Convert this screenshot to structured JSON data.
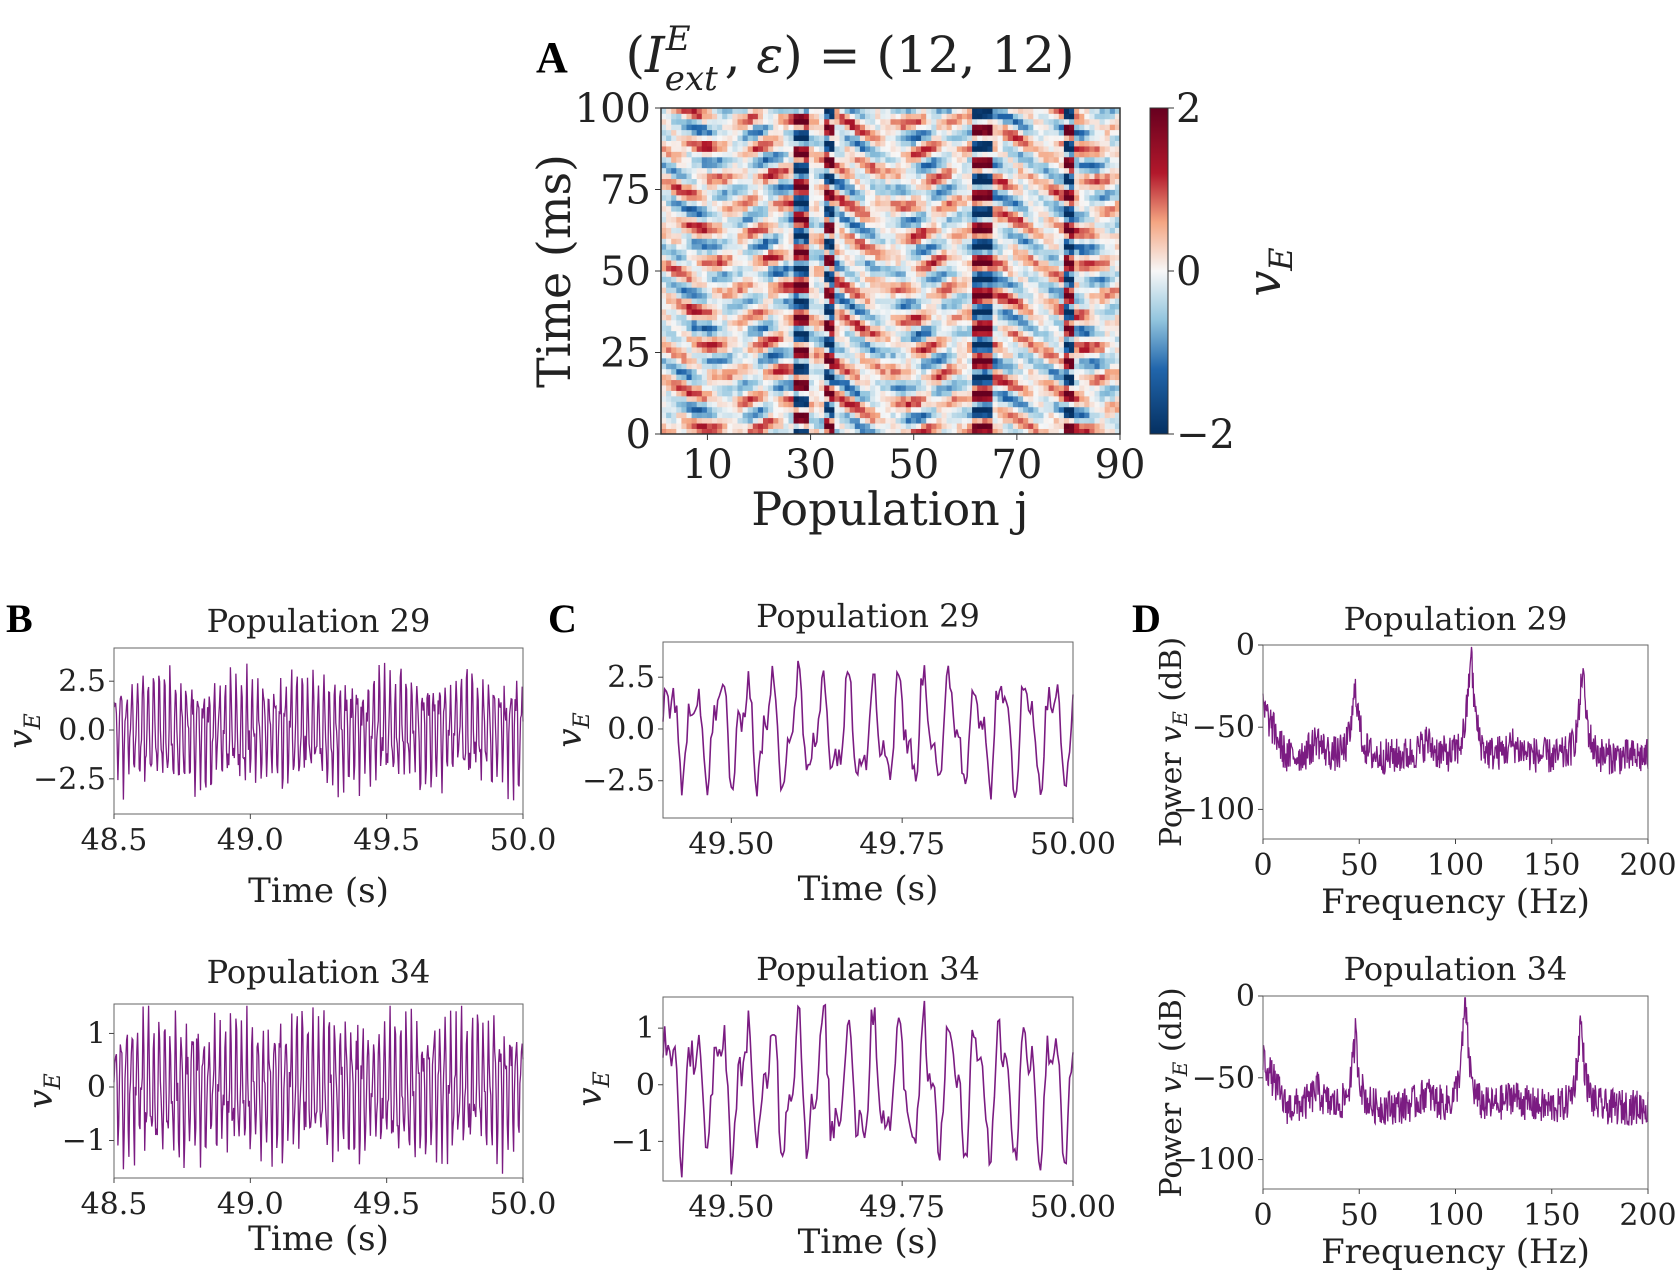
{
  "panels": {
    "A": "A",
    "B": "B",
    "C": "C",
    "D": "D"
  },
  "chart_data": [
    {
      "id": "A",
      "type": "heatmap",
      "title": "(I^E_ext, ε) = (12, 12)",
      "xlabel": "Population j",
      "ylabel": "Time (ms)",
      "xticks": [
        "10",
        "30",
        "50",
        "70",
        "90"
      ],
      "xlim": [
        1,
        90
      ],
      "yticks": [
        "0",
        "25",
        "50",
        "75",
        "100"
      ],
      "ylim": [
        0,
        100
      ],
      "colorbar": {
        "label": "v_E",
        "min": -2,
        "max": 2,
        "ticks": [
          "−2",
          "0",
          "2"
        ],
        "colormap": "RdBu_r"
      }
    },
    {
      "id": "B1",
      "type": "line",
      "title": "Population 29",
      "xlabel": "Time (s)",
      "ylabel": "v_E",
      "xlim": [
        48.5,
        50.0
      ],
      "ylim": [
        -4.3,
        4.2
      ],
      "xticks": [
        "48.5",
        "49.0",
        "49.5",
        "50.0"
      ],
      "yticks": [
        "−2.5",
        "0.0",
        "2.5"
      ],
      "color": "#7b1c82"
    },
    {
      "id": "B2",
      "type": "line",
      "title": "Population 34",
      "xlabel": "Time (s)",
      "ylabel": "v_E",
      "xlim": [
        48.5,
        50.0
      ],
      "ylim": [
        -1.7,
        1.55
      ],
      "xticks": [
        "48.5",
        "49.0",
        "49.5",
        "50.0"
      ],
      "yticks": [
        "−1",
        "0",
        "1"
      ],
      "color": "#7b1c82"
    },
    {
      "id": "C1",
      "type": "line",
      "title": "Population 29",
      "xlabel": "Time (s)",
      "ylabel": "v_E",
      "xlim": [
        49.4,
        50.0
      ],
      "ylim": [
        -4.3,
        4.2
      ],
      "xticks": [
        "49.50",
        "49.75",
        "50.00"
      ],
      "yticks": [
        "−2.5",
        "0.0",
        "2.5"
      ],
      "color": "#7b1c82"
    },
    {
      "id": "C2",
      "type": "line",
      "title": "Population 34",
      "xlabel": "Time (s)",
      "ylabel": "v_E",
      "xlim": [
        49.4,
        50.0
      ],
      "ylim": [
        -1.7,
        1.55
      ],
      "xticks": [
        "49.50",
        "49.75",
        "50.00"
      ],
      "yticks": [
        "−1",
        "0",
        "1"
      ],
      "color": "#7b1c82"
    },
    {
      "id": "D1",
      "type": "line",
      "title": "Population 29",
      "xlabel": "Frequency (Hz)",
      "ylabel": "Power v_E (dB)",
      "xlim": [
        0,
        200
      ],
      "ylim": [
        -118,
        0
      ],
      "xticks": [
        "0",
        "50",
        "100",
        "150",
        "200"
      ],
      "yticks": [
        "−100",
        "−50",
        "0"
      ],
      "peaks_hz": [
        48,
        108,
        166
      ],
      "baseline_db": -68,
      "color": "#7b1c82"
    },
    {
      "id": "D2",
      "type": "line",
      "title": "Population 34",
      "xlabel": "Frequency (Hz)",
      "ylabel": "Power v_E (dB)",
      "xlim": [
        0,
        200
      ],
      "ylim": [
        -118,
        0
      ],
      "xticks": [
        "0",
        "50",
        "100",
        "150",
        "200"
      ],
      "yticks": [
        "−100",
        "−50",
        "0"
      ],
      "peaks_hz": [
        48,
        105,
        165
      ],
      "baseline_db": -68,
      "color": "#7b1c82"
    }
  ]
}
